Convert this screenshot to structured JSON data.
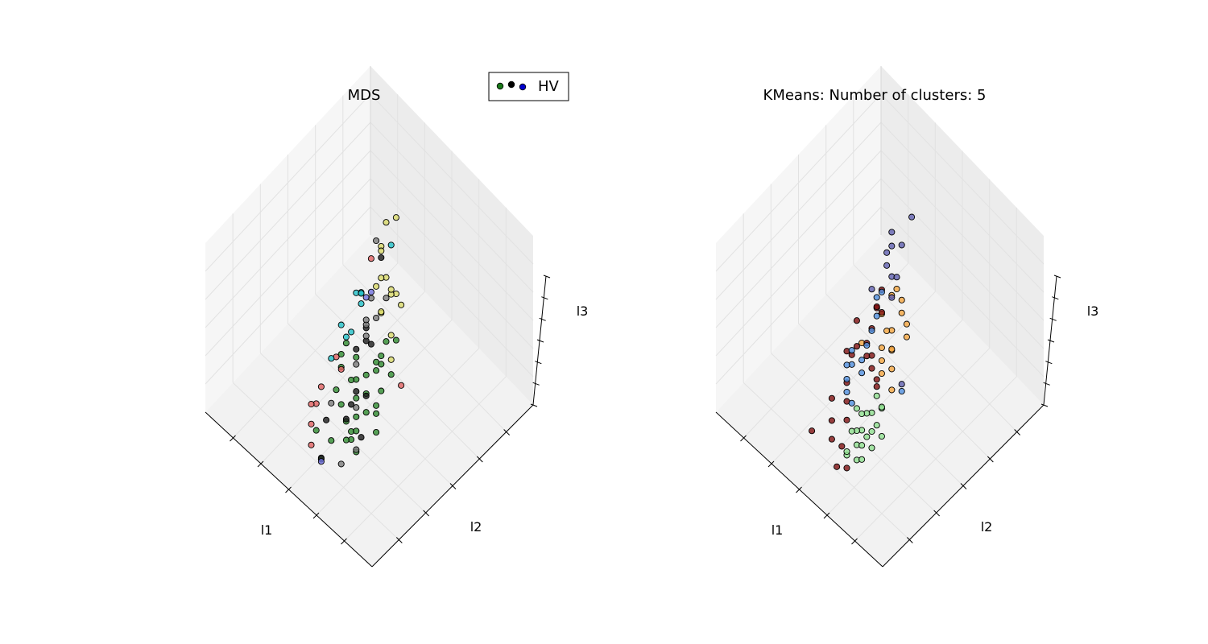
{
  "chart_data": [
    {
      "type": "scatter3d",
      "title": "MDS",
      "xlabel": "l1",
      "ylabel": "l2",
      "zlabel": "l3",
      "grid": true,
      "legend": {
        "placement": "top-right",
        "label": "HV",
        "marker_colors": [
          "#1a7a1a",
          "#000000",
          "#0000cc"
        ]
      },
      "colors": [
        "#2e8b2e",
        "#1a1a1a",
        "#7a7a7a",
        "#d9d96a",
        "#e06060",
        "#20c0c8",
        "#7070e0"
      ],
      "points": [
        {
          "x": -1.1,
          "y": -0.3,
          "z": 1.0,
          "c": 3
        },
        {
          "x": -0.9,
          "y": -0.2,
          "z": 1.1,
          "c": 3
        },
        {
          "x": -0.7,
          "y": -0.1,
          "z": 1.0,
          "c": 3
        },
        {
          "x": -0.5,
          "y": 0.0,
          "z": 1.2,
          "c": 3
        },
        {
          "x": -0.3,
          "y": 0.1,
          "z": 1.1,
          "c": 3
        },
        {
          "x": -0.8,
          "y": -0.4,
          "z": 0.8,
          "c": 3
        },
        {
          "x": -0.6,
          "y": -0.2,
          "z": 0.7,
          "c": 3
        },
        {
          "x": -1.2,
          "y": -0.6,
          "z": 0.6,
          "c": 3
        },
        {
          "x": 0.1,
          "y": 0.5,
          "z": 1.4,
          "c": 3
        },
        {
          "x": 0.4,
          "y": 0.9,
          "z": 1.6,
          "c": 3
        },
        {
          "x": 0.6,
          "y": 1.3,
          "z": 1.5,
          "c": 3
        },
        {
          "x": 0.3,
          "y": 0.7,
          "z": 1.2,
          "c": 3
        },
        {
          "x": -0.4,
          "y": 0.2,
          "z": 0.9,
          "c": 3
        },
        {
          "x": -1.4,
          "y": -0.8,
          "z": 0.3,
          "c": 3
        },
        {
          "x": 0.0,
          "y": 0.3,
          "z": 0.8,
          "c": 3
        },
        {
          "x": -1.0,
          "y": -0.5,
          "z": 0.4,
          "c": 0
        },
        {
          "x": -1.1,
          "y": -0.7,
          "z": 0.1,
          "c": 0
        },
        {
          "x": -0.9,
          "y": -0.6,
          "z": -0.1,
          "c": 0
        },
        {
          "x": -1.2,
          "y": -0.8,
          "z": -0.3,
          "c": 0
        },
        {
          "x": -0.8,
          "y": -0.7,
          "z": -0.5,
          "c": 0
        },
        {
          "x": -1.0,
          "y": -0.9,
          "z": -0.7,
          "c": 0
        },
        {
          "x": -0.7,
          "y": -0.8,
          "z": -0.9,
          "c": 0
        },
        {
          "x": -1.3,
          "y": -1.0,
          "z": -0.6,
          "c": 0
        },
        {
          "x": -0.6,
          "y": -0.5,
          "z": -0.3,
          "c": 0
        },
        {
          "x": -0.5,
          "y": -0.6,
          "z": -0.7,
          "c": 0
        },
        {
          "x": -0.9,
          "y": -1.1,
          "z": -1.0,
          "c": 0
        },
        {
          "x": -0.4,
          "y": -0.7,
          "z": -1.1,
          "c": 0
        },
        {
          "x": -1.1,
          "y": -1.2,
          "z": -0.9,
          "c": 0
        },
        {
          "x": -0.8,
          "y": -1.0,
          "z": -1.2,
          "c": 0
        },
        {
          "x": -0.3,
          "y": -0.4,
          "z": -0.5,
          "c": 0
        },
        {
          "x": -1.4,
          "y": -1.1,
          "z": -0.4,
          "c": 0
        },
        {
          "x": -0.6,
          "y": -0.9,
          "z": -1.3,
          "c": 0
        },
        {
          "x": -0.2,
          "y": -0.6,
          "z": -0.9,
          "c": 0
        },
        {
          "x": -1.0,
          "y": -0.4,
          "z": -0.2,
          "c": 0
        },
        {
          "x": -0.7,
          "y": -0.3,
          "z": 0.0,
          "c": 0
        },
        {
          "x": -0.5,
          "y": -0.2,
          "z": -0.2,
          "c": 0
        },
        {
          "x": -0.1,
          "y": -0.3,
          "z": -0.6,
          "c": 0
        },
        {
          "x": 0.0,
          "y": -0.1,
          "z": -0.3,
          "c": 0
        },
        {
          "x": 0.1,
          "y": -0.4,
          "z": -0.8,
          "c": 0
        },
        {
          "x": -0.3,
          "y": -0.9,
          "z": -1.4,
          "c": 0
        },
        {
          "x": 0.2,
          "y": -0.2,
          "z": -0.5,
          "c": 0
        },
        {
          "x": -1.2,
          "y": -1.3,
          "z": -1.2,
          "c": 0
        },
        {
          "x": 0.3,
          "y": -0.6,
          "z": -1.5,
          "c": 0
        },
        {
          "x": -0.9,
          "y": -0.2,
          "z": 0.3,
          "c": 0
        },
        {
          "x": -1.5,
          "y": -1.2,
          "z": -0.8,
          "c": 0
        },
        {
          "x": 0.4,
          "y": 0.0,
          "z": -0.4,
          "c": 0
        },
        {
          "x": -0.4,
          "y": -1.2,
          "z": -1.6,
          "c": 0
        },
        {
          "x": 0.5,
          "y": 0.2,
          "z": -0.3,
          "c": 0
        },
        {
          "x": -0.6,
          "y": -0.4,
          "z": 0.2,
          "c": 1
        },
        {
          "x": -0.8,
          "y": -0.9,
          "z": -0.4,
          "c": 1
        },
        {
          "x": -0.3,
          "y": -0.5,
          "z": -0.9,
          "c": 1
        },
        {
          "x": -0.1,
          "y": -0.2,
          "z": -0.1,
          "c": 1
        },
        {
          "x": 0.2,
          "y": 0.3,
          "z": -0.2,
          "c": 1
        },
        {
          "x": -1.0,
          "y": -1.0,
          "z": -1.1,
          "c": 1
        },
        {
          "x": -0.5,
          "y": -0.8,
          "z": -1.0,
          "c": 1
        },
        {
          "x": 0.4,
          "y": 0.5,
          "z": -0.1,
          "c": 1
        },
        {
          "x": -0.2,
          "y": -1.0,
          "z": -1.7,
          "c": 1
        },
        {
          "x": 0.6,
          "y": 1.0,
          "z": 0.9,
          "c": 1
        },
        {
          "x": -0.7,
          "y": -0.6,
          "z": -0.6,
          "c": 1
        },
        {
          "x": 0.0,
          "y": -0.7,
          "z": -1.2,
          "c": 1
        },
        {
          "x": -0.4,
          "y": -0.1,
          "z": 0.5,
          "c": 2
        },
        {
          "x": 0.0,
          "y": 0.1,
          "z": 0.2,
          "c": 2
        },
        {
          "x": -0.2,
          "y": -0.3,
          "z": -0.3,
          "c": 2
        },
        {
          "x": 0.3,
          "y": 0.4,
          "z": 0.1,
          "c": 2
        },
        {
          "x": -0.6,
          "y": -0.7,
          "z": -0.8,
          "c": 2
        },
        {
          "x": 0.5,
          "y": 0.6,
          "z": -0.3,
          "c": 2
        },
        {
          "x": -0.9,
          "y": -1.3,
          "z": -1.5,
          "c": 2
        },
        {
          "x": 0.7,
          "y": 0.9,
          "z": 0.2,
          "c": 2
        },
        {
          "x": -1.3,
          "y": -1.4,
          "z": -1.1,
          "c": 2
        },
        {
          "x": 0.1,
          "y": -0.5,
          "z": -1.0,
          "c": 2
        },
        {
          "x": 0.8,
          "y": 1.1,
          "z": 1.1,
          "c": 2
        },
        {
          "x": -0.1,
          "y": 0.4,
          "z": 0.6,
          "c": 2
        },
        {
          "x": 0.2,
          "y": -0.8,
          "z": -1.3,
          "c": 4
        },
        {
          "x": 0.4,
          "y": -0.5,
          "z": -1.1,
          "c": 4
        },
        {
          "x": 0.5,
          "y": -0.3,
          "z": -0.9,
          "c": 4
        },
        {
          "x": 0.3,
          "y": -0.1,
          "z": -0.6,
          "c": 4
        },
        {
          "x": 0.6,
          "y": -0.4,
          "z": -1.2,
          "c": 4
        },
        {
          "x": 0.1,
          "y": -0.9,
          "z": -1.6,
          "c": 4
        },
        {
          "x": -1.9,
          "y": -1.1,
          "z": 0.1,
          "c": 4
        },
        {
          "x": 1.0,
          "y": 1.2,
          "z": 0.7,
          "c": 4
        },
        {
          "x": 0.7,
          "y": 0.2,
          "z": -0.6,
          "c": 4
        },
        {
          "x": 0.8,
          "y": 0.8,
          "z": 0.3,
          "c": 5
        },
        {
          "x": 1.0,
          "y": 0.9,
          "z": 0.2,
          "c": 5
        },
        {
          "x": 1.1,
          "y": 1.1,
          "z": 0.1,
          "c": 5
        },
        {
          "x": 0.9,
          "y": 0.5,
          "z": -0.2,
          "c": 5
        },
        {
          "x": 1.2,
          "y": 0.6,
          "z": -0.9,
          "c": 5
        },
        {
          "x": 1.3,
          "y": 1.3,
          "z": -0.2,
          "c": 5
        },
        {
          "x": 0.6,
          "y": 0.4,
          "z": -0.2,
          "c": 5
        },
        {
          "x": 0.2,
          "y": 0.8,
          "z": 1.3,
          "c": 5
        },
        {
          "x": 1.0,
          "y": 0.7,
          "z": -0.5,
          "c": 5
        },
        {
          "x": 1.1,
          "y": 1.2,
          "z": 0.0,
          "c": 6
        },
        {
          "x": 1.2,
          "y": 1.4,
          "z": 0.0,
          "c": 6
        },
        {
          "x": -0.3,
          "y": -1.1,
          "z": -1.7,
          "c": 6
        }
      ]
    },
    {
      "type": "scatter3d",
      "title": "KMeans: Number of clusters: 5",
      "xlabel": "l1",
      "ylabel": "l2",
      "zlabel": "l3",
      "grid": true,
      "colors": [
        "#7f1010",
        "#90e090",
        "#f5a640",
        "#5090e0",
        "#6060b0"
      ],
      "points": [
        {
          "x": -1.3,
          "y": -0.6,
          "z": 0.6,
          "c": 2
        },
        {
          "x": -1.1,
          "y": -0.4,
          "z": 0.7,
          "c": 2
        },
        {
          "x": -0.9,
          "y": -0.3,
          "z": 0.8,
          "c": 2
        },
        {
          "x": -0.7,
          "y": -0.1,
          "z": 0.9,
          "c": 2
        },
        {
          "x": -1.2,
          "y": -0.8,
          "z": 0.4,
          "c": 2
        },
        {
          "x": -1.0,
          "y": -0.6,
          "z": 0.3,
          "c": 2
        },
        {
          "x": -0.8,
          "y": -0.4,
          "z": 0.5,
          "c": 2
        },
        {
          "x": -0.6,
          "y": -0.3,
          "z": 0.4,
          "c": 2
        },
        {
          "x": -1.4,
          "y": -1.0,
          "z": 0.2,
          "c": 2
        },
        {
          "x": -0.5,
          "y": 0.0,
          "z": 1.0,
          "c": 2
        },
        {
          "x": -1.1,
          "y": -0.9,
          "z": 0.0,
          "c": 2
        },
        {
          "x": -0.4,
          "y": -0.2,
          "z": 0.6,
          "c": 2
        },
        {
          "x": -0.9,
          "y": -0.7,
          "z": 0.1,
          "c": 2
        },
        {
          "x": -0.3,
          "y": 0.1,
          "z": 0.8,
          "c": 2
        },
        {
          "x": -1.5,
          "y": -1.1,
          "z": -0.1,
          "c": 2
        },
        {
          "x": -0.2,
          "y": -0.4,
          "z": 0.1,
          "c": 2
        },
        {
          "x": -0.7,
          "y": -0.5,
          "z": 0.2,
          "c": 2
        },
        {
          "x": -0.1,
          "y": 0.3,
          "z": 1.0,
          "c": 4
        },
        {
          "x": 0.1,
          "y": 0.4,
          "z": 1.1,
          "c": 4
        },
        {
          "x": 0.3,
          "y": 0.6,
          "z": 1.2,
          "c": 4
        },
        {
          "x": 0.5,
          "y": 0.9,
          "z": 1.4,
          "c": 4
        },
        {
          "x": 0.4,
          "y": 1.2,
          "z": 1.6,
          "c": 4
        },
        {
          "x": 0.2,
          "y": 0.8,
          "z": 1.3,
          "c": 4
        },
        {
          "x": 0.0,
          "y": 0.5,
          "z": 0.9,
          "c": 4
        },
        {
          "x": -1.6,
          "y": -1.0,
          "z": 0.0,
          "c": 4
        },
        {
          "x": 0.6,
          "y": 1.0,
          "z": 1.1,
          "c": 4
        },
        {
          "x": -0.2,
          "y": 0.2,
          "z": 0.7,
          "c": 4
        },
        {
          "x": 0.4,
          "y": 0.4,
          "z": 0.6,
          "c": 4
        },
        {
          "x": -0.8,
          "y": -0.8,
          "z": -0.8,
          "c": 1
        },
        {
          "x": -1.0,
          "y": -1.0,
          "z": -1.0,
          "c": 1
        },
        {
          "x": -0.6,
          "y": -0.7,
          "z": -0.9,
          "c": 1
        },
        {
          "x": -1.2,
          "y": -1.1,
          "z": -0.8,
          "c": 1
        },
        {
          "x": -0.9,
          "y": -1.2,
          "z": -1.2,
          "c": 1
        },
        {
          "x": -0.7,
          "y": -0.9,
          "z": -1.1,
          "c": 1
        },
        {
          "x": -1.1,
          "y": -0.9,
          "z": -0.6,
          "c": 1
        },
        {
          "x": -0.5,
          "y": -0.8,
          "z": -1.2,
          "c": 1
        },
        {
          "x": -1.3,
          "y": -1.3,
          "z": -1.1,
          "c": 1
        },
        {
          "x": -0.8,
          "y": -1.0,
          "z": -1.3,
          "c": 1
        },
        {
          "x": -0.4,
          "y": -0.6,
          "z": -1.0,
          "c": 1
        },
        {
          "x": -1.0,
          "y": -1.3,
          "z": -1.4,
          "c": 1
        },
        {
          "x": -0.6,
          "y": -1.1,
          "z": -1.5,
          "c": 1
        },
        {
          "x": -1.4,
          "y": -1.2,
          "z": -0.9,
          "c": 1
        },
        {
          "x": -0.3,
          "y": -0.7,
          "z": -1.3,
          "c": 1
        },
        {
          "x": -0.9,
          "y": -0.7,
          "z": -0.7,
          "c": 1
        },
        {
          "x": -1.2,
          "y": -1.4,
          "z": -1.3,
          "c": 1
        },
        {
          "x": -0.5,
          "y": -1.0,
          "z": -1.5,
          "c": 1
        },
        {
          "x": -0.7,
          "y": -0.6,
          "z": -0.6,
          "c": 1
        },
        {
          "x": -1.1,
          "y": -1.2,
          "z": -1.0,
          "c": 1
        },
        {
          "x": -0.2,
          "y": -0.5,
          "z": -1.0,
          "c": 1
        },
        {
          "x": -0.4,
          "y": -0.3,
          "z": -0.5,
          "c": 0
        },
        {
          "x": -0.2,
          "y": -0.2,
          "z": -0.4,
          "c": 0
        },
        {
          "x": 0.0,
          "y": 0.0,
          "z": -0.3,
          "c": 0
        },
        {
          "x": 0.2,
          "y": 0.1,
          "z": -0.4,
          "c": 0
        },
        {
          "x": -0.6,
          "y": -0.5,
          "z": -0.5,
          "c": 0
        },
        {
          "x": 0.4,
          "y": 0.3,
          "z": -0.3,
          "c": 0
        },
        {
          "x": 0.6,
          "y": 0.6,
          "z": -0.2,
          "c": 0
        },
        {
          "x": -0.1,
          "y": -0.6,
          "z": -1.2,
          "c": 0
        },
        {
          "x": 0.1,
          "y": -0.4,
          "z": -1.0,
          "c": 0
        },
        {
          "x": -0.3,
          "y": -0.9,
          "z": -1.5,
          "c": 0
        },
        {
          "x": 0.3,
          "y": -0.2,
          "z": -0.8,
          "c": 0
        },
        {
          "x": 0.8,
          "y": 0.9,
          "z": 0.0,
          "c": 0
        },
        {
          "x": 1.0,
          "y": 1.1,
          "z": -0.1,
          "c": 0
        },
        {
          "x": 0.9,
          "y": 0.6,
          "z": -0.6,
          "c": 0
        },
        {
          "x": 1.2,
          "y": 0.8,
          "z": -0.9,
          "c": 0
        },
        {
          "x": 0.5,
          "y": -0.3,
          "z": -1.1,
          "c": 0
        },
        {
          "x": -0.5,
          "y": -1.2,
          "z": -1.7,
          "c": 0
        },
        {
          "x": 0.0,
          "y": -0.8,
          "z": -1.5,
          "c": 0
        },
        {
          "x": 0.7,
          "y": 0.2,
          "z": -0.5,
          "c": 0
        },
        {
          "x": -0.8,
          "y": -1.3,
          "z": -1.6,
          "c": 0
        },
        {
          "x": 0.2,
          "y": -0.6,
          "z": -1.3,
          "c": 0
        },
        {
          "x": 1.1,
          "y": 1.3,
          "z": 0.1,
          "c": 0
        },
        {
          "x": 0.3,
          "y": 0.5,
          "z": 0.2,
          "c": 0
        },
        {
          "x": 1.3,
          "y": 1.0,
          "z": -0.4,
          "c": 0
        },
        {
          "x": 0.6,
          "y": -0.6,
          "z": -1.6,
          "c": 0
        },
        {
          "x": 0.1,
          "y": -0.1,
          "z": -0.6,
          "c": 3
        },
        {
          "x": 0.3,
          "y": 0.1,
          "z": -0.5,
          "c": 3
        },
        {
          "x": 0.5,
          "y": 0.4,
          "z": -0.4,
          "c": 3
        },
        {
          "x": 0.7,
          "y": 0.7,
          "z": -0.3,
          "c": 3
        },
        {
          "x": 0.4,
          "y": -0.1,
          "z": -0.8,
          "c": 3
        },
        {
          "x": 0.2,
          "y": -0.3,
          "z": -0.9,
          "c": 3
        },
        {
          "x": 0.9,
          "y": 1.0,
          "z": -0.2,
          "c": 3
        },
        {
          "x": 1.1,
          "y": 1.2,
          "z": 0.0,
          "c": 3
        },
        {
          "x": 0.6,
          "y": 0.2,
          "z": -0.7,
          "c": 3
        },
        {
          "x": -1.8,
          "y": -1.2,
          "z": 0.0,
          "c": 3
        },
        {
          "x": 1.2,
          "y": 1.4,
          "z": 0.0,
          "c": 3
        },
        {
          "x": 0.8,
          "y": 0.3,
          "z": -0.8,
          "c": 3
        },
        {
          "x": 0.0,
          "y": -0.4,
          "z": -1.0,
          "c": 3
        },
        {
          "x": 1.0,
          "y": 0.6,
          "z": -0.7,
          "c": 3
        }
      ]
    }
  ]
}
